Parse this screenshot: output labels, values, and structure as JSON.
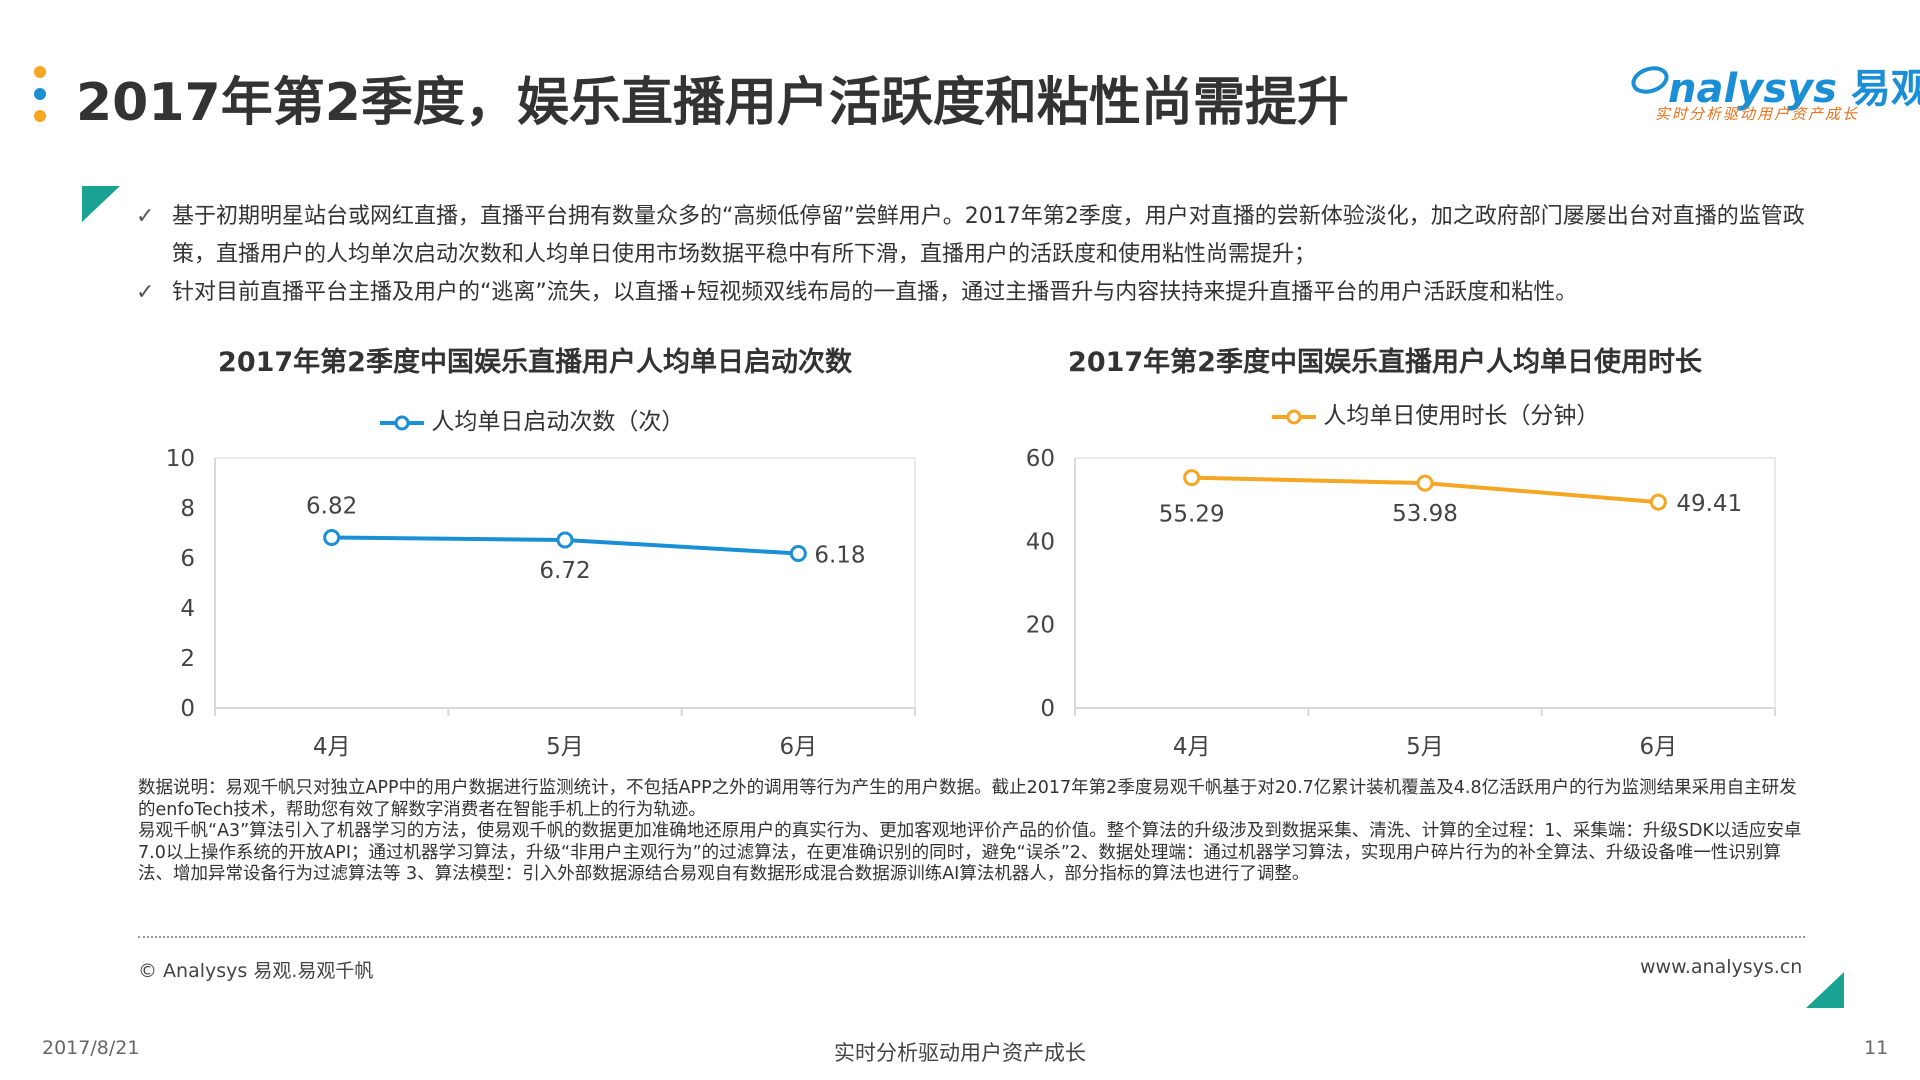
{
  "header": {
    "title": "2017年第2季度，娱乐直播用户活跃度和粘性尚需提升",
    "dots_colors": [
      "#f5a623",
      "#1a8fd6",
      "#f5a623"
    ],
    "logo": {
      "brand": "nalysys",
      "brand_cn": "易观",
      "tagline": "实时分析驱动用户资产成长"
    }
  },
  "bullets": [
    {
      "check": "✓",
      "text": "基于初期明星站台或网红直播，直播平台拥有数量众多的“高频低停留”尝鲜用户。2017年第2季度，用户对直播的尝新体验淡化，加之政府部门屡屡出台对直播的监管政策，直播用户的人均单次启动次数和人均单日使用市场数据平稳中有所下滑，直播用户的活跃度和使用粘性尚需提升；"
    },
    {
      "check": "✓",
      "text": "针对目前直播平台主播及用户的“逃离”流失，以直播+短视频双线布局的一直播，通过主播晋升与内容扶持来提升直播平台的用户活跃度和粘性。"
    }
  ],
  "chart_data": [
    {
      "type": "line",
      "title": "2017年第2季度中国娱乐直播用户人均单日启动次数",
      "categories": [
        "4月",
        "5月",
        "6月"
      ],
      "series": [
        {
          "name": "人均单日启动次数（次）",
          "values": [
            6.82,
            6.72,
            6.18
          ],
          "labels": [
            "6.82",
            "6.72",
            "6.18"
          ],
          "color": "#1a8fd6"
        }
      ],
      "ylim": [
        0,
        10
      ],
      "yticks": [
        "0",
        "2",
        "4",
        "6",
        "8",
        "10"
      ],
      "grid": false,
      "legend": "top"
    },
    {
      "type": "line",
      "title": "2017年第2季度中国娱乐直播用户人均单日使用时长",
      "categories": [
        "4月",
        "5月",
        "6月"
      ],
      "series": [
        {
          "name": "人均单日使用时长（分钟）",
          "values": [
            55.29,
            53.98,
            49.41
          ],
          "labels": [
            "55.29",
            "53.98",
            "49.41"
          ],
          "color": "#f5a623"
        }
      ],
      "ylim": [
        0,
        60
      ],
      "yticks": [
        "0",
        "20",
        "40",
        "60"
      ],
      "grid": false,
      "legend": "top"
    }
  ],
  "notes": [
    "数据说明：易观千帆只对独立APP中的用户数据进行监测统计，不包括APP之外的调用等行为产生的用户数据。截止2017年第2季度易观千帆基于对20.7亿累计装机覆盖及4.8亿活跃用户的行为监测结果采用自主研发的enfoTech技术，帮助您有效了解数字消费者在智能手机上的行为轨迹。",
    "易观千帆“A3”算法引入了机器学习的方法，使易观千帆的数据更加准确地还原用户的真实行为、更加客观地评价产品的价值。整个算法的升级涉及到数据采集、清洗、计算的全过程：1、采集端：升级SDK以适应安卓7.0以上操作系统的开放API；通过机器学习算法，升级“非用户主观行为”的过滤算法，在更准确识别的同时，避免“误杀”2、数据处理端：通过机器学习算法，实现用户碎片行为的补全算法、升级设备唯一性识别算法、增加异常设备行为过滤算法等 3、算法模型：引入外部数据源结合易观自有数据形成混合数据源训练AI算法机器人，部分指标的算法也进行了调整。"
  ],
  "footer": {
    "copyright": "© Analysys 易观.易观千帆",
    "website": "www.analysys.cn",
    "date": "2017/8/21",
    "slogan": "实时分析驱动用户资产成长",
    "page": "11"
  },
  "accent": "#1aa392"
}
